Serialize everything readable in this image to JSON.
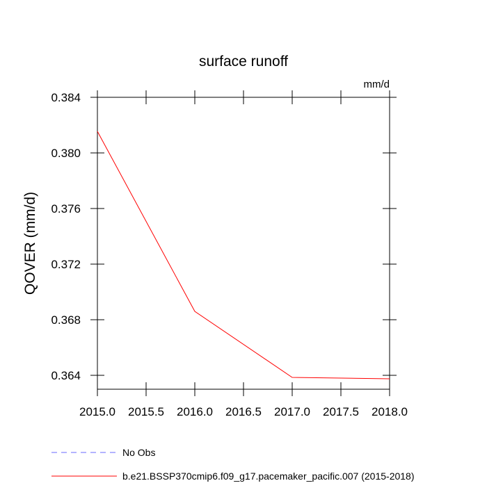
{
  "chart_data": {
    "type": "line",
    "title": "surface runoff",
    "units": "mm/d",
    "y_label": "QOVER  (mm/d)",
    "x": [
      2015,
      2016,
      2017,
      2018
    ],
    "series": [
      {
        "name": "No Obs",
        "color": "#6a6aff",
        "dashed": true,
        "values": [
          null,
          null,
          null,
          null
        ]
      },
      {
        "name": "b.e21.BSSP370cmip6.f09_g17.pacemaker_pacific.007 (2015-2018)",
        "color": "#ff0000",
        "dashed": false,
        "values": [
          0.38155,
          0.3686,
          0.36385,
          0.36375
        ]
      }
    ],
    "xlim": [
      2015,
      2018
    ],
    "xticks": [
      {
        "value": 2015,
        "label": "2015.0"
      },
      {
        "value": 2015.5,
        "label": "2015.5"
      },
      {
        "value": 2016,
        "label": "2016.0"
      },
      {
        "value": 2016.5,
        "label": "2016.5"
      },
      {
        "value": 2017,
        "label": "2017.0"
      },
      {
        "value": 2017.5,
        "label": "2017.5"
      },
      {
        "value": 2018,
        "label": "2018.0"
      }
    ],
    "ylim": [
      0.363,
      0.384
    ],
    "yticks": [
      {
        "value": 0.364,
        "label": "0.364"
      },
      {
        "value": 0.368,
        "label": "0.368"
      },
      {
        "value": 0.372,
        "label": "0.372"
      },
      {
        "value": 0.376,
        "label": "0.376"
      },
      {
        "value": 0.38,
        "label": "0.380"
      },
      {
        "value": 0.384,
        "label": "0.384"
      }
    ]
  }
}
